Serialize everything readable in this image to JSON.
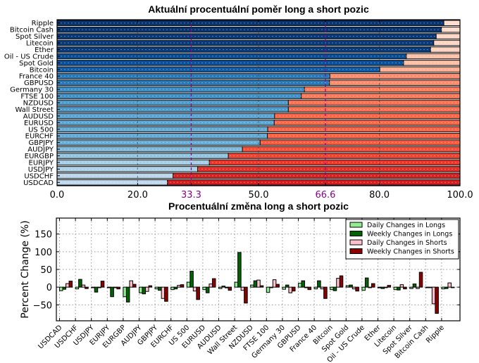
{
  "chart_data": [
    {
      "type": "bar",
      "orientation": "horizontal-stacked",
      "title": "Aktuální procentuální poměr long a short pozic",
      "categories": [
        "Ripple",
        "Bitcoin Cash",
        "Spot Silver",
        "Litecoin",
        "Ether",
        "Oil - US Crude",
        "Spot Gold",
        "Bitcoin",
        "France 40",
        "GBPUSD",
        "Germany 30",
        "FTSE 100",
        "NZDUSD",
        "Wall Street",
        "AUDUSD",
        "EURUSD",
        "US 500",
        "EURCHF",
        "GBPJPY",
        "AUDJPY",
        "EURGBP",
        "EURJPY",
        "USDJPY",
        "USDCHF",
        "USDCAD"
      ],
      "series": [
        {
          "name": "Long",
          "values": [
            96.0,
            95.4,
            94.1,
            93.5,
            92.7,
            86.7,
            86.0,
            80.1,
            67.7,
            67.6,
            61.4,
            60.6,
            57.4,
            57.4,
            54.0,
            53.9,
            52.3,
            52.2,
            50.4,
            46.0,
            42.5,
            37.8,
            34.9,
            28.8,
            27.4
          ]
        },
        {
          "name": "Short",
          "values": [
            4.0,
            4.6,
            5.9,
            6.5,
            7.3,
            13.3,
            14.0,
            19.9,
            32.3,
            32.4,
            38.6,
            39.4,
            42.6,
            42.6,
            46.0,
            46.1,
            47.7,
            47.8,
            49.6,
            54.0,
            57.5,
            62.2,
            65.1,
            71.2,
            72.6
          ]
        }
      ],
      "xlim": [
        0,
        100
      ],
      "xticks": [
        "0.0",
        "20.0",
        "33.3",
        "50.0",
        "66.6",
        "80.0",
        "100.0"
      ],
      "xtick_values": [
        0,
        20,
        33.3,
        50,
        66.6,
        80,
        100
      ],
      "highlight_ticks": [
        "33.3",
        "66.6"
      ],
      "reference_lines": [
        33.3,
        66.6
      ],
      "grid": true,
      "colors": {
        "long_dark": "#08306b",
        "long_light": "#c6dbef",
        "short_light": "#fee0d2",
        "short_dark": "#cb181d",
        "ref_line": "#8b008b"
      }
    },
    {
      "type": "bar",
      "title": "Procentuální změna long a short pozic",
      "ylabel": "Percent Change (%)",
      "xlabel": "",
      "categories": [
        "USDCAD",
        "USDCHF",
        "USDJPY",
        "EURJPY",
        "EURGBP",
        "AUDJPY",
        "GBPJPY",
        "EURCHF",
        "US 500",
        "EURUSD",
        "AUDUSD",
        "Wall Street",
        "NZDUSD",
        "FTSE 100",
        "Germany 30",
        "GBPUSD",
        "France 40",
        "Bitcoin",
        "Spot Gold",
        "Oil - US Crude",
        "Ether",
        "Litecoin",
        "Spot Silver",
        "Bitcoin Cash",
        "Ripple"
      ],
      "series": [
        {
          "name": "Daily Changes in Longs",
          "color": "#90ee90",
          "values": [
            -10,
            -5,
            0,
            0,
            -27,
            -16,
            -5,
            -7,
            14,
            -7,
            -4,
            14,
            6,
            -15,
            -6,
            11,
            -5,
            -7,
            4,
            -9,
            -2,
            -7,
            -4,
            0,
            -5
          ]
        },
        {
          "name": "Weekly Changes in Longs",
          "color": "#006400",
          "values": [
            -6,
            22,
            -14,
            -27,
            -42,
            -19,
            -9,
            -5,
            45,
            -16,
            3,
            98,
            18,
            0,
            6,
            18,
            18,
            -10,
            6,
            26,
            -4,
            -8,
            9,
            0,
            -4
          ]
        },
        {
          "name": "Daily Changes in Shorts",
          "color": "#ffc0cb",
          "values": [
            10,
            6,
            0,
            0,
            18,
            -12,
            -32,
            5,
            -11,
            9,
            -2,
            -9,
            20,
            21,
            -16,
            0,
            -5,
            25,
            -5,
            -1,
            0,
            7,
            -4,
            -47,
            12
          ]
        },
        {
          "name": "Weekly Changes in Shorts",
          "color": "#8b0000",
          "values": [
            17,
            -4,
            17,
            -5,
            8,
            4,
            -40,
            7,
            -35,
            24,
            -9,
            -45,
            4,
            8,
            -11,
            -7,
            -32,
            32,
            -11,
            10,
            5,
            -5,
            42,
            -74,
            0
          ]
        }
      ],
      "ylim": [
        -95,
        195
      ],
      "yticks": [
        -50,
        0,
        50,
        100,
        150
      ],
      "grid": true,
      "legend": "top-right"
    }
  ]
}
